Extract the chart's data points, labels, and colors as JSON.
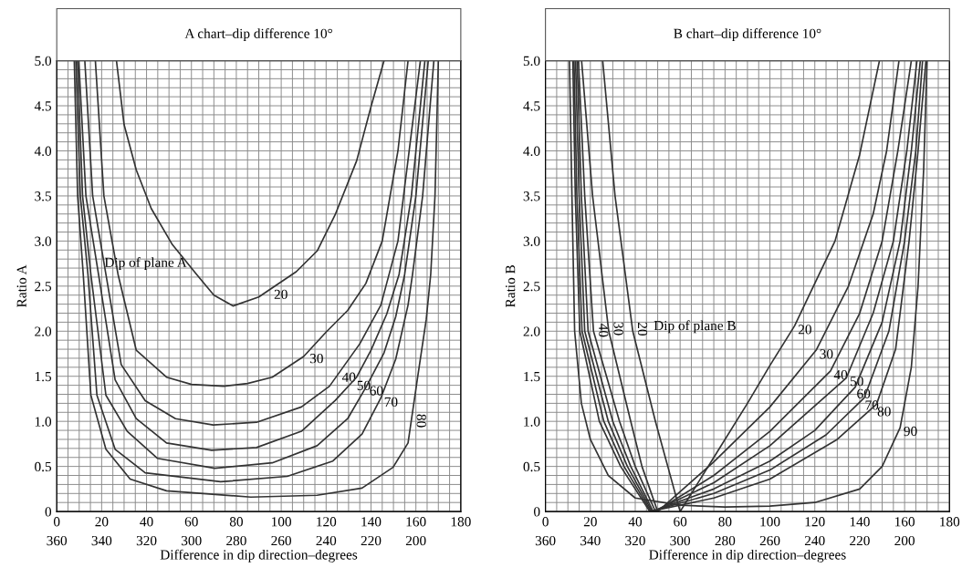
{
  "chart_data": [
    {
      "type": "line",
      "title": "A chart–dip difference 10°",
      "xlabel": "Difference in dip direction–degrees",
      "ylabel": "Ratio A",
      "xlim": [
        0,
        180
      ],
      "ylim": [
        0,
        5
      ],
      "grid": true,
      "x2lim": [
        360,
        180
      ],
      "xticks": [
        0,
        {
          "value": 5,
          "label": null
        },
        {
          "value": 10,
          "label": null
        },
        {
          "value": 15,
          "label": null
        },
        20,
        {
          "value": 25,
          "label": null
        },
        {
          "value": 30,
          "label": null
        },
        {
          "value": 35,
          "label": null
        },
        40,
        {
          "value": 45,
          "label": null
        },
        {
          "value": 50,
          "label": null
        },
        {
          "value": 55,
          "label": null
        },
        60,
        {
          "value": 65,
          "label": null
        },
        {
          "value": 70,
          "label": null
        },
        {
          "value": 75,
          "label": null
        },
        80,
        {
          "value": 85,
          "label": null
        },
        {
          "value": 90,
          "label": null
        },
        {
          "value": 95,
          "label": null
        },
        100,
        {
          "value": 105,
          "label": null
        },
        {
          "value": 110,
          "label": null
        },
        {
          "value": 115,
          "label": null
        },
        120,
        {
          "value": 125,
          "label": null
        },
        {
          "value": 130,
          "label": null
        },
        {
          "value": 135,
          "label": null
        },
        140,
        {
          "value": 145,
          "label": null
        },
        {
          "value": 150,
          "label": null
        },
        {
          "value": 155,
          "label": null
        },
        160,
        {
          "value": 165,
          "label": null
        },
        {
          "value": 170,
          "label": null
        },
        {
          "value": 175,
          "label": null
        },
        180
      ],
      "x2ticks": [
        360,
        340,
        320,
        300,
        280,
        260,
        240,
        220,
        200
      ],
      "yticks": [
        {
          "value": 0,
          "label": "0"
        },
        {
          "value": 0.1,
          "label": null
        },
        {
          "value": 0.2,
          "label": null
        },
        {
          "value": 0.3,
          "label": null
        },
        {
          "value": 0.4,
          "label": null
        },
        {
          "value": 0.5,
          "label": "0.5"
        },
        {
          "value": 0.6,
          "label": null
        },
        {
          "value": 0.7,
          "label": null
        },
        {
          "value": 0.8,
          "label": null
        },
        {
          "value": 0.9,
          "label": null
        },
        {
          "value": 1,
          "label": "1.0"
        },
        {
          "value": 1.1,
          "label": null
        },
        {
          "value": 1.2,
          "label": null
        },
        {
          "value": 1.3,
          "label": null
        },
        {
          "value": 1.4,
          "label": null
        },
        {
          "value": 1.5,
          "label": "1.5"
        },
        {
          "value": 1.6,
          "label": null
        },
        {
          "value": 1.7,
          "label": null
        },
        {
          "value": 1.8,
          "label": null
        },
        {
          "value": 1.9,
          "label": null
        },
        {
          "value": 2,
          "label": "2.0"
        },
        {
          "value": 2.1,
          "label": null
        },
        {
          "value": 2.2,
          "label": null
        },
        {
          "value": 2.3,
          "label": null
        },
        {
          "value": 2.4,
          "label": null
        },
        {
          "value": 2.5,
          "label": "2.5"
        },
        {
          "value": 2.6,
          "label": null
        },
        {
          "value": 2.7,
          "label": null
        },
        {
          "value": 2.8,
          "label": null
        },
        {
          "value": 2.9,
          "label": null
        },
        {
          "value": 3,
          "label": "3.0"
        },
        {
          "value": 3.1,
          "label": null
        },
        {
          "value": 3.2,
          "label": null
        },
        {
          "value": 3.3,
          "label": null
        },
        {
          "value": 3.4,
          "label": null
        },
        {
          "value": 3.5,
          "label": "3.5"
        },
        {
          "value": 3.6,
          "label": null
        },
        {
          "value": 3.7,
          "label": null
        },
        {
          "value": 3.8,
          "label": null
        },
        {
          "value": 3.9,
          "label": null
        },
        {
          "value": 4,
          "label": "4.0"
        },
        {
          "value": 4.1,
          "label": null
        },
        {
          "value": 4.2,
          "label": null
        },
        {
          "value": 4.3,
          "label": null
        },
        {
          "value": 4.4,
          "label": null
        },
        {
          "value": 4.5,
          "label": "4.5"
        },
        {
          "value": 4.6,
          "label": null
        },
        {
          "value": 4.7,
          "label": null
        },
        {
          "value": 4.8,
          "label": null
        },
        {
          "value": 4.9,
          "label": null
        },
        {
          "value": 5,
          "label": "5.0"
        }
      ],
      "series": [
        {
          "color": "#333333",
          "x": [
            26.6,
            30,
            35.4,
            42.1,
            51.5,
            62.3,
            70,
            78.5,
            90,
            106.7,
            116,
            124,
            133.6,
            140,
            145.8
          ],
          "values": [
            5,
            4.29,
            3.79,
            3.36,
            2.96,
            2.63,
            2.4,
            2.28,
            2.38,
            2.66,
            2.89,
            3.29,
            3.89,
            4.49,
            5
          ]
        },
        {
          "color": "#333333",
          "x": [
            17.2,
            21,
            27.3,
            35.4,
            48.9,
            60,
            74.4,
            85,
            96,
            110,
            120,
            129.6,
            137.7,
            145,
            152,
            156.5
          ],
          "values": [
            5,
            3.5,
            2.63,
            1.79,
            1.49,
            1.41,
            1.39,
            1.42,
            1.49,
            1.72,
            1.99,
            2.23,
            2.53,
            3,
            4,
            5
          ]
        },
        {
          "color": "#333333",
          "x": [
            12.5,
            16,
            21.9,
            28.7,
            39.4,
            52.9,
            69.7,
            89,
            109,
            121.5,
            135,
            144.4,
            152,
            157,
            162
          ],
          "values": [
            5,
            3.5,
            2.63,
            1.63,
            1.23,
            1.03,
            0.96,
            0.99,
            1.16,
            1.39,
            1.86,
            2.29,
            3,
            4,
            5
          ]
        },
        {
          "color": "#333333",
          "x": [
            9.8,
            13,
            18.6,
            26,
            35.4,
            48.9,
            69,
            89,
            109,
            124,
            133.6,
            140,
            147,
            152.5,
            158,
            164
          ],
          "values": [
            5,
            3.5,
            2.63,
            1.46,
            1.03,
            0.76,
            0.68,
            0.71,
            0.89,
            1.23,
            1.49,
            1.79,
            2.19,
            2.63,
            3.5,
            5
          ]
        },
        {
          "color": "#333333",
          "x": [
            9.2,
            11.5,
            15.2,
            21.9,
            31.4,
            44.8,
            70.4,
            96,
            116,
            129.6,
            138,
            145.8,
            151,
            155,
            160,
            165.5
          ],
          "values": [
            5,
            3.5,
            2.63,
            1.29,
            0.89,
            0.59,
            0.48,
            0.54,
            0.73,
            1.03,
            1.39,
            1.76,
            2.16,
            2.63,
            3.5,
            5
          ]
        },
        {
          "color": "#333333",
          "x": [
            8.5,
            10.5,
            13.9,
            17.9,
            26,
            39.4,
            73,
            102.7,
            123,
            136,
            144.4,
            151,
            156.5,
            158.5,
            163,
            168
          ],
          "values": [
            5,
            3.5,
            2.63,
            1.29,
            0.69,
            0.43,
            0.33,
            0.39,
            0.56,
            0.86,
            1.26,
            1.69,
            2.29,
            2.63,
            3.5,
            5
          ]
        },
        {
          "color": "#333333",
          "x": [
            7.8,
            9.3,
            11.8,
            15.2,
            21.9,
            32.7,
            48.9,
            86.5,
            116,
            136,
            149.8,
            156.5,
            160.6,
            164.6,
            166.6,
            168.5,
            170
          ],
          "values": [
            5,
            3.5,
            2.63,
            1.29,
            0.69,
            0.36,
            0.23,
            0.16,
            0.18,
            0.26,
            0.49,
            0.76,
            1.46,
            2.13,
            2.63,
            3.5,
            5
          ]
        }
      ],
      "annotations": [
        "Dip of plane A",
        {
          "text": "20",
          "x": 97,
          "y": 2.5
        },
        {
          "text": "30",
          "x": 112,
          "y": 1.77
        },
        {
          "text": "40",
          "x": 126,
          "y": 1.55
        },
        {
          "text": "50",
          "x": 133,
          "y": 1.47
        },
        {
          "text": "60",
          "x": 138,
          "y": 1.39
        },
        {
          "text": "70",
          "x": 144.4,
          "y": 1.26
        },
        {
          "text": "80",
          "x": 158,
          "y": 1.02
        }
      ]
    },
    {
      "type": "line",
      "title": "B chart–dip difference 10°",
      "xlabel": "Difference in dip direction–degrees",
      "ylabel": "Ratio B",
      "xlim": [
        0,
        180
      ],
      "ylim": [
        0,
        5
      ],
      "grid": true,
      "x2lim": [
        360,
        180
      ],
      "xticks": [
        0,
        {
          "value": 5,
          "label": null
        },
        {
          "value": 10,
          "label": null
        },
        {
          "value": 15,
          "label": null
        },
        20,
        {
          "value": 25,
          "label": null
        },
        {
          "value": 30,
          "label": null
        },
        {
          "value": 35,
          "label": null
        },
        40,
        {
          "value": 45,
          "label": null
        },
        {
          "value": 50,
          "label": null
        },
        {
          "value": 55,
          "label": null
        },
        60,
        {
          "value": 65,
          "label": null
        },
        {
          "value": 70,
          "label": null
        },
        {
          "value": 75,
          "label": null
        },
        80,
        {
          "value": 85,
          "label": null
        },
        {
          "value": 90,
          "label": null
        },
        {
          "value": 95,
          "label": null
        },
        100,
        {
          "value": 105,
          "label": null
        },
        {
          "value": 110,
          "label": null
        },
        {
          "value": 115,
          "label": null
        },
        120,
        {
          "value": 125,
          "label": null
        },
        {
          "value": 130,
          "label": null
        },
        {
          "value": 135,
          "label": null
        },
        140,
        {
          "value": 145,
          "label": null
        },
        {
          "value": 150,
          "label": null
        },
        {
          "value": 155,
          "label": null
        },
        160,
        {
          "value": 165,
          "label": null
        },
        {
          "value": 170,
          "label": null
        },
        {
          "value": 175,
          "label": null
        },
        180
      ],
      "x2ticks": [
        360,
        340,
        320,
        300,
        280,
        260,
        240,
        220,
        200
      ],
      "yticks": [
        {
          "value": 0,
          "label": "0"
        },
        {
          "value": 0.1,
          "label": null
        },
        {
          "value": 0.2,
          "label": null
        },
        {
          "value": 0.3,
          "label": null
        },
        {
          "value": 0.4,
          "label": null
        },
        {
          "value": 0.5,
          "label": "0.5"
        },
        {
          "value": 0.6,
          "label": null
        },
        {
          "value": 0.7,
          "label": null
        },
        {
          "value": 0.8,
          "label": null
        },
        {
          "value": 0.9,
          "label": null
        },
        {
          "value": 1,
          "label": "1.0"
        },
        {
          "value": 1.1,
          "label": null
        },
        {
          "value": 1.2,
          "label": null
        },
        {
          "value": 1.3,
          "label": null
        },
        {
          "value": 1.4,
          "label": null
        },
        {
          "value": 1.5,
          "label": "1.5"
        },
        {
          "value": 1.6,
          "label": null
        },
        {
          "value": 1.7,
          "label": null
        },
        {
          "value": 1.8,
          "label": null
        },
        {
          "value": 1.9,
          "label": null
        },
        {
          "value": 2,
          "label": "2.0"
        },
        {
          "value": 2.1,
          "label": null
        },
        {
          "value": 2.2,
          "label": null
        },
        {
          "value": 2.3,
          "label": null
        },
        {
          "value": 2.4,
          "label": null
        },
        {
          "value": 2.5,
          "label": "2.5"
        },
        {
          "value": 2.6,
          "label": null
        },
        {
          "value": 2.7,
          "label": null
        },
        {
          "value": 2.8,
          "label": null
        },
        {
          "value": 2.9,
          "label": null
        },
        {
          "value": 3,
          "label": "3.0"
        },
        {
          "value": 3.1,
          "label": null
        },
        {
          "value": 3.2,
          "label": null
        },
        {
          "value": 3.3,
          "label": null
        },
        {
          "value": 3.4,
          "label": null
        },
        {
          "value": 3.5,
          "label": "3.5"
        },
        {
          "value": 3.6,
          "label": null
        },
        {
          "value": 3.7,
          "label": null
        },
        {
          "value": 3.8,
          "label": null
        },
        {
          "value": 3.9,
          "label": null
        },
        {
          "value": 4,
          "label": "4.0"
        },
        {
          "value": 4.1,
          "label": null
        },
        {
          "value": 4.2,
          "label": null
        },
        {
          "value": 4.3,
          "label": null
        },
        {
          "value": 4.4,
          "label": null
        },
        {
          "value": 4.5,
          "label": "4.5"
        },
        {
          "value": 4.6,
          "label": null
        },
        {
          "value": 4.7,
          "label": null
        },
        {
          "value": 4.8,
          "label": null
        },
        {
          "value": 4.9,
          "label": null
        },
        {
          "value": 5,
          "label": "5.0"
        }
      ],
      "series": [
        {
          "color": "#333333",
          "x": [
            25.5,
            31,
            38.9,
            49,
            54.5,
            60,
            75,
            90,
            100,
            111,
            115,
            129,
            140,
            148.8
          ],
          "values": [
            5,
            3.5,
            2,
            1,
            0.5,
            0,
            0.6,
            1.2,
            1.62,
            2.06,
            2.27,
            3,
            3.96,
            5
          ]
        },
        {
          "color": "#333333",
          "x": [
            16.1,
            21,
            28.2,
            38,
            43,
            50,
            75,
            100,
            120.6,
            135,
            146,
            152,
            157.5
          ],
          "values": [
            5,
            3.5,
            2,
            1,
            0.5,
            0,
            0.55,
            1.16,
            1.79,
            2.5,
            3.3,
            4,
            5
          ]
        },
        {
          "color": "#333333",
          "x": [
            14.7,
            17.5,
            21.4,
            33,
            40,
            49,
            75,
            100,
            127,
            140,
            150,
            157,
            163
          ],
          "values": [
            5,
            3.5,
            2,
            1,
            0.5,
            0,
            0.4,
            0.89,
            1.56,
            2.2,
            3,
            4,
            5
          ]
        },
        {
          "color": "#333333",
          "x": [
            14.1,
            16,
            19,
            30,
            38,
            48,
            75,
            100,
            134,
            146,
            155,
            161,
            165.5
          ],
          "values": [
            5,
            3.5,
            2,
            1,
            0.5,
            0,
            0.32,
            0.73,
            1.48,
            2.2,
            3,
            4,
            5
          ]
        },
        {
          "color": "#333333",
          "x": [
            13.4,
            15,
            17.5,
            28,
            36.5,
            47.5,
            75,
            100,
            120,
            138,
            150,
            158,
            163,
            167
          ],
          "values": [
            5,
            3.5,
            2,
            1,
            0.5,
            0,
            0.25,
            0.56,
            0.9,
            1.38,
            2.1,
            3,
            4,
            5
          ]
        },
        {
          "color": "#333333",
          "x": [
            12.7,
            14,
            16.3,
            26,
            35,
            47,
            75,
            100,
            125,
            142,
            153,
            160,
            165,
            168
          ],
          "values": [
            5,
            3.5,
            2,
            1,
            0.5,
            0,
            0.2,
            0.46,
            0.85,
            1.26,
            2,
            3,
            4,
            5
          ]
        },
        {
          "color": "#333333",
          "x": [
            12.2,
            13.3,
            15.3,
            24,
            33.5,
            46.5,
            75,
            100,
            130,
            147.5,
            156,
            162,
            166,
            169.5
          ],
          "values": [
            5,
            3.5,
            2,
            1,
            0.5,
            0,
            0.15,
            0.36,
            0.8,
            1.19,
            1.8,
            3,
            4,
            5
          ]
        },
        {
          "color": "#333333",
          "x": [
            10.7,
            11.8,
            13,
            16,
            20,
            28,
            40,
            60,
            80,
            100,
            120,
            140,
            150,
            158,
            163,
            166,
            168.5,
            170
          ],
          "values": [
            5,
            3.5,
            2,
            1.2,
            0.8,
            0.4,
            0.15,
            0.07,
            0.05,
            0.06,
            0.1,
            0.25,
            0.5,
            0.93,
            1.6,
            2.5,
            3.8,
            5
          ]
        }
      ],
      "annotations": [
        "Dip of plane B",
        {
          "text": "40",
          "x": 21.4,
          "y": 2
        },
        {
          "text": "30",
          "x": 28.2,
          "y": 2
        },
        {
          "text": "20",
          "x": 38.9,
          "y": 2
        },
        {
          "text": "20",
          "x": 111,
          "y": 2.06
        },
        {
          "text": "30",
          "x": 120.6,
          "y": 1.79
        },
        {
          "text": "40",
          "x": 127,
          "y": 1.56
        },
        {
          "text": "50",
          "x": 134,
          "y": 1.48
        },
        {
          "text": "60",
          "x": 138,
          "y": 1.38
        },
        {
          "text": "70",
          "x": 142,
          "y": 1.26
        },
        {
          "text": "80",
          "x": 147.5,
          "y": 1.19
        },
        {
          "text": "90",
          "x": 158,
          "y": 0.93
        }
      ]
    }
  ]
}
